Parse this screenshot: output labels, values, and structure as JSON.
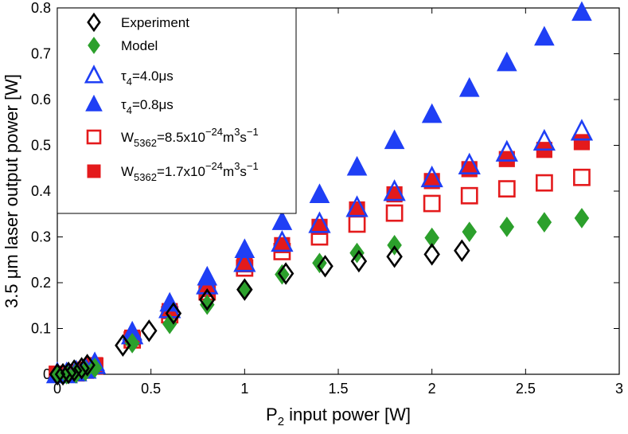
{
  "chart_data": {
    "type": "scatter",
    "title": "",
    "xlabel": {
      "main": "P",
      "sub": "2",
      "rest": " input power [W]"
    },
    "ylabel": "3.5 μm laser output power [W]",
    "xlim": [
      0,
      3
    ],
    "ylim": [
      0,
      0.8
    ],
    "xticks": [
      0,
      0.5,
      1,
      1.5,
      2,
      2.5,
      3
    ],
    "xtick_labels": [
      "0",
      "0.5",
      "1",
      "1.5",
      "2",
      "2.5",
      "3"
    ],
    "yticks": [
      0,
      0.1,
      0.2,
      0.3,
      0.4,
      0.5,
      0.6,
      0.7,
      0.8
    ],
    "ytick_labels": [
      "0",
      "0.1",
      "0.2",
      "0.3",
      "0.4",
      "0.5",
      "0.6",
      "0.7",
      "0.8"
    ],
    "grid": false,
    "legend_position": "top-left",
    "series": [
      {
        "name": "Experiment",
        "label_parts": [
          {
            "t": "Experiment"
          }
        ],
        "marker": "diamond-open",
        "color": "#000000",
        "x": [
          0.0,
          0.03,
          0.06,
          0.09,
          0.13,
          0.16,
          0.35,
          0.49,
          0.62,
          0.8,
          1.0,
          1.22,
          1.43,
          1.61,
          1.8,
          2.0,
          2.16
        ],
        "y": [
          0.0,
          0.0,
          0.003,
          0.008,
          0.013,
          0.02,
          0.063,
          0.095,
          0.133,
          0.163,
          0.185,
          0.22,
          0.236,
          0.247,
          0.257,
          0.262,
          0.27
        ]
      },
      {
        "name": "Model",
        "label_parts": [
          {
            "t": "Model"
          }
        ],
        "marker": "diamond-filled",
        "color": "#2ca02c",
        "x": [
          0.0,
          0.05,
          0.1,
          0.15,
          0.2,
          0.4,
          0.6,
          0.8,
          1.0,
          1.2,
          1.4,
          1.6,
          1.8,
          2.0,
          2.2,
          2.4,
          2.6,
          2.8
        ],
        "y": [
          0.0,
          0.0,
          0.002,
          0.007,
          0.014,
          0.068,
          0.11,
          0.152,
          0.187,
          0.218,
          0.243,
          0.265,
          0.282,
          0.298,
          0.311,
          0.322,
          0.332,
          0.341
        ]
      },
      {
        "name": "τ4=4.0μs",
        "label_parts": [
          {
            "t": "τ"
          },
          {
            "t": "4",
            "sub": true
          },
          {
            "t": "=4.0μs"
          }
        ],
        "marker": "triangle-open",
        "color": "#1f3ff5",
        "x": [
          0.0,
          0.05,
          0.1,
          0.15,
          0.2,
          0.4,
          0.6,
          0.8,
          1.0,
          1.2,
          1.4,
          1.6,
          1.8,
          2.0,
          2.2,
          2.4,
          2.6,
          2.8
        ],
        "y": [
          0.0,
          0.0,
          0.004,
          0.01,
          0.02,
          0.085,
          0.142,
          0.194,
          0.243,
          0.287,
          0.328,
          0.363,
          0.398,
          0.428,
          0.456,
          0.484,
          0.508,
          0.53
        ]
      },
      {
        "name": "τ4=0.8μs",
        "label_parts": [
          {
            "t": "τ"
          },
          {
            "t": "4",
            "sub": true
          },
          {
            "t": "=0.8μs"
          }
        ],
        "marker": "triangle-filled",
        "color": "#1f3ff5",
        "x": [
          0.0,
          0.05,
          0.1,
          0.15,
          0.2,
          0.4,
          0.6,
          0.8,
          1.0,
          1.2,
          1.4,
          1.6,
          1.8,
          2.0,
          2.2,
          2.4,
          2.6,
          2.8
        ],
        "y": [
          0.0,
          0.0,
          0.005,
          0.012,
          0.025,
          0.092,
          0.155,
          0.212,
          0.272,
          0.333,
          0.392,
          0.452,
          0.51,
          0.567,
          0.624,
          0.68,
          0.736,
          0.79
        ]
      },
      {
        "name": "W5362=8.5x10-24m3s-1",
        "label_parts": [
          {
            "t": "W"
          },
          {
            "t": "5362",
            "sub": true
          },
          {
            "t": "=8.5x10"
          },
          {
            "t": "−24",
            "sup": true
          },
          {
            "t": "m"
          },
          {
            "t": "3",
            "sup": true
          },
          {
            "t": "s"
          },
          {
            "t": "−1",
            "sup": true
          }
        ],
        "marker": "square-open",
        "color": "#e41a1c",
        "x": [
          0.0,
          0.05,
          0.1,
          0.15,
          0.2,
          0.4,
          0.6,
          0.8,
          1.0,
          1.2,
          1.4,
          1.6,
          1.8,
          2.0,
          2.2,
          2.4,
          2.6,
          2.8
        ],
        "y": [
          0.0,
          0.0,
          0.003,
          0.009,
          0.018,
          0.075,
          0.13,
          0.18,
          0.232,
          0.268,
          0.3,
          0.328,
          0.352,
          0.373,
          0.39,
          0.405,
          0.418,
          0.43
        ]
      },
      {
        "name": "W5362=1.7x10-24m3s-1",
        "label_parts": [
          {
            "t": "W"
          },
          {
            "t": "5362",
            "sub": true
          },
          {
            "t": "=1.7x10"
          },
          {
            "t": "−24",
            "sup": true
          },
          {
            "t": "m"
          },
          {
            "t": "3",
            "sup": true
          },
          {
            "t": "s"
          },
          {
            "t": "−1",
            "sup": true
          }
        ],
        "marker": "square-filled",
        "color": "#e41a1c",
        "x": [
          0.0,
          0.05,
          0.1,
          0.15,
          0.2,
          0.4,
          0.6,
          0.8,
          1.0,
          1.2,
          1.4,
          1.6,
          1.8,
          2.0,
          2.2,
          2.4,
          2.6,
          2.8
        ],
        "y": [
          0.0,
          0.0,
          0.004,
          0.01,
          0.02,
          0.08,
          0.138,
          0.186,
          0.24,
          0.282,
          0.322,
          0.36,
          0.393,
          0.422,
          0.448,
          0.47,
          0.49,
          0.507
        ]
      }
    ]
  }
}
